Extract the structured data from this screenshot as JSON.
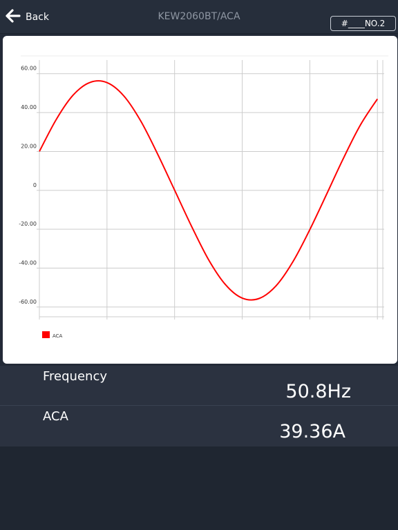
{
  "header": {
    "back_label": "Back",
    "title": "KEW2060BT/ACA",
    "device_selector": "#____NO.2"
  },
  "readings": {
    "frequency": {
      "label": "Frequency",
      "value": "50.8Hz"
    },
    "aca": {
      "label": "ACA",
      "value": "39.36A"
    }
  },
  "colors": {
    "background": "#232a37",
    "series": "#ff0000",
    "grid": "#cccccc"
  },
  "chart_data": {
    "type": "line",
    "title": "",
    "xlabel": "",
    "ylabel": "",
    "ylim": [
      -65,
      67
    ],
    "yticks": [
      60,
      40,
      20,
      0,
      -20,
      -40,
      -60
    ],
    "ytick_labels": [
      "60.00",
      "40.00",
      "20.00",
      "0",
      "-20.00",
      "-40.00",
      "-60.00"
    ],
    "xlim": [
      0,
      1.02
    ],
    "xgrid": [
      0,
      0.2,
      0.4,
      0.6,
      0.8,
      1.0
    ],
    "grid": true,
    "legend": {
      "position": "bottom-left",
      "entries": [
        "ACA"
      ]
    },
    "series": [
      {
        "name": "ACA",
        "color": "#ff0000",
        "x": [
          0,
          0.05,
          0.1,
          0.15,
          0.2,
          0.25,
          0.3,
          0.35,
          0.4,
          0.45,
          0.5,
          0.55,
          0.6,
          0.65,
          0.7,
          0.75,
          0.8,
          0.85,
          0.9,
          0.95,
          1.0
        ],
        "values": [
          20.0,
          36.5,
          49.0,
          55.5,
          55.4,
          48.5,
          35.6,
          18.6,
          0.1,
          -18.4,
          -35.5,
          -48.4,
          -55.4,
          -55.6,
          -49.1,
          -36.7,
          -20.2,
          -1.9,
          16.7,
          33.7,
          47.0
        ]
      }
    ]
  }
}
